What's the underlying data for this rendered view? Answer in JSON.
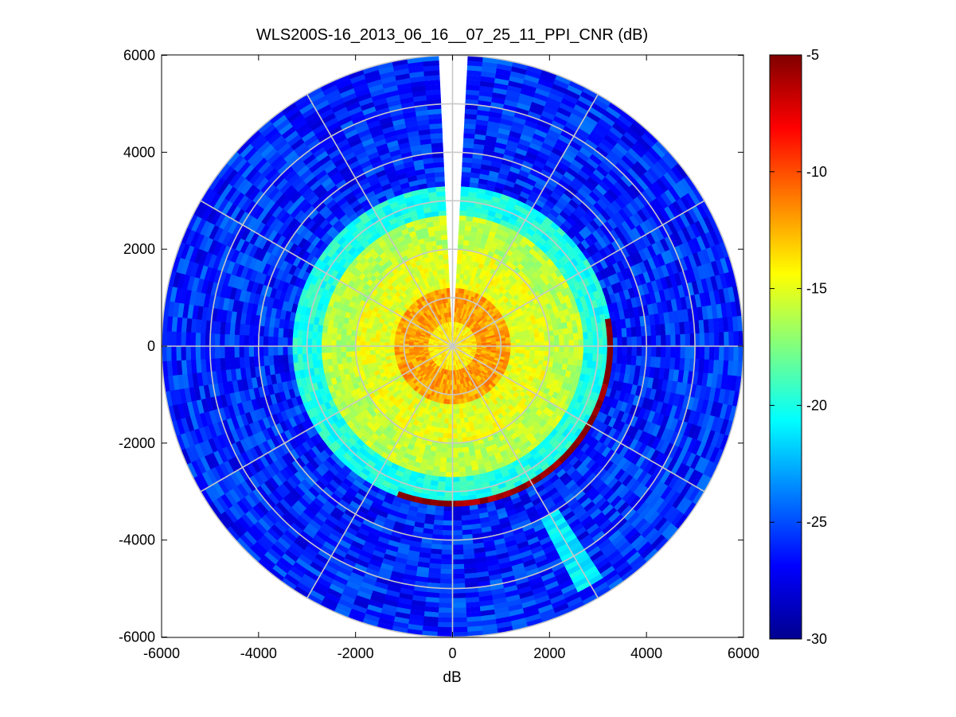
{
  "chart_data": {
    "type": "heatmap",
    "subtype": "polar PPI scan",
    "title": "WLS200S-16_2013_06_16__07_25_11_PPI_CNR (dB)",
    "xlabel": "dB",
    "ylabel": "",
    "xlim": [
      -6000,
      6000
    ],
    "ylim": [
      -6000,
      6000
    ],
    "xticks": [
      "-6000",
      "-4000",
      "-2000",
      "0",
      "2000",
      "4000",
      "6000"
    ],
    "yticks": [
      "6000",
      "4000",
      "2000",
      "0",
      "-2000",
      "-4000",
      "-6000"
    ],
    "grid": true,
    "grid_rings": [
      1000,
      2000,
      3000,
      4000,
      5000,
      6000
    ],
    "grid_spokes_deg": [
      0,
      30,
      60,
      90,
      120,
      150,
      180,
      210,
      240,
      270,
      300,
      330
    ],
    "colormap": "jet",
    "colorbar": {
      "limits": [
        -30,
        -5
      ],
      "ticks": [
        "-5",
        "-10",
        "-15",
        "-20",
        "-25",
        "-30"
      ],
      "placement": "right"
    },
    "max_range": 6000,
    "missing_sector_deg": [
      -4,
      4
    ],
    "cnr_profile": [
      {
        "range_start": 0,
        "range_end": 500,
        "cnr_db": -14
      },
      {
        "range_start": 500,
        "range_end": 1200,
        "cnr_db": -12
      },
      {
        "range_start": 1200,
        "range_end": 2000,
        "cnr_db": -15
      },
      {
        "range_start": 2000,
        "range_end": 2700,
        "cnr_db": -16
      },
      {
        "range_start": 2700,
        "range_end": 3300,
        "cnr_db": -20
      },
      {
        "range_start": 3300,
        "range_end": 6000,
        "cnr_db": -26
      }
    ],
    "hard_target_arc": {
      "range": 3250,
      "azimuth_deg": [
        80,
        200
      ],
      "cnr_db": -5
    },
    "low_cnr_beam": {
      "azimuth_deg": 150,
      "range": [
        4000,
        5700
      ],
      "cnr_db": -21
    }
  },
  "colors": {
    "background": "#ffffff",
    "grid": "#c8c8c8",
    "axes": "#000000",
    "missing_data": "#ffffff"
  }
}
